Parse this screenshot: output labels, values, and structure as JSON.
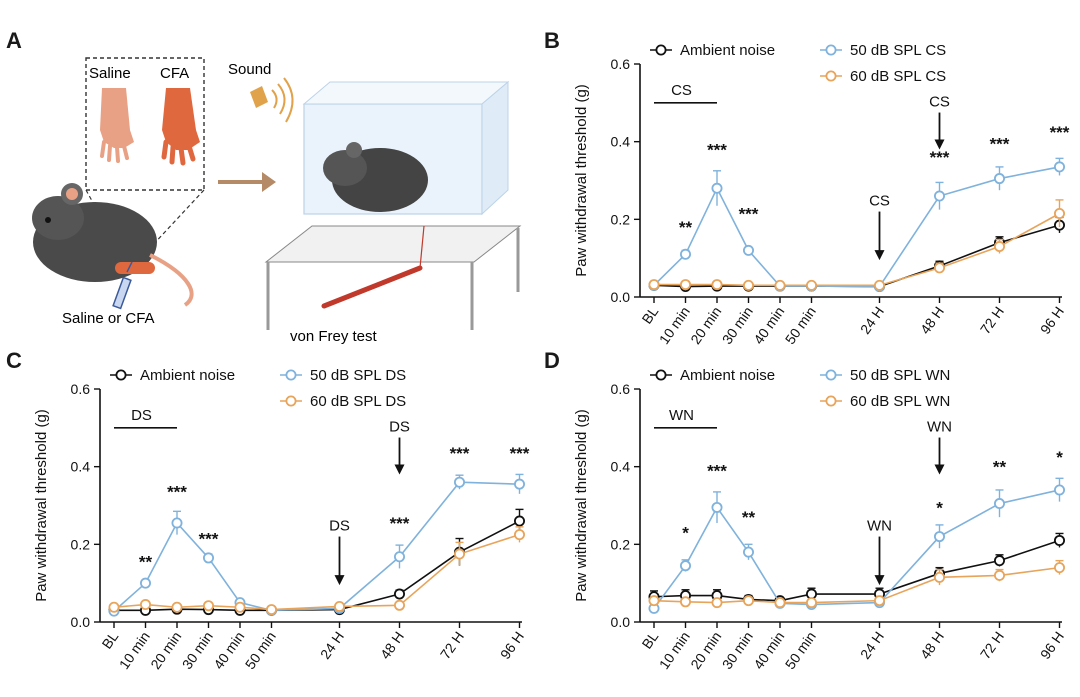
{
  "panel_a": {
    "letter": "A",
    "labels": {
      "saline": "Saline",
      "cfa": "CFA",
      "sound": "Sound",
      "injection": "Saline or CFA",
      "test": "von Frey test"
    }
  },
  "colors": {
    "ambient": "#111111",
    "cond50": "#7fb2dc",
    "cond60": "#e8a45a"
  },
  "chart_data": [
    {
      "panel": "B",
      "type": "line",
      "ylabel": "Paw withdrawal threshold (g)",
      "ylim": [
        0,
        0.6
      ],
      "yticks": [
        "0.0",
        "0.2",
        "0.4",
        "0.6"
      ],
      "categories": [
        "BL",
        "10 min",
        "20 min",
        "30 min",
        "40 min",
        "50 min",
        "24 H",
        "48 H",
        "72 H",
        "96 H"
      ],
      "series": [
        {
          "name": "Ambient noise",
          "color": "#111111",
          "values": [
            0.03,
            0.027,
            0.028,
            0.028,
            0.028,
            0.028,
            0.027,
            0.08,
            0.14,
            0.185
          ],
          "errors": [
            0.005,
            0.005,
            0.005,
            0.005,
            0.005,
            0.005,
            0.005,
            0.012,
            0.015,
            0.02
          ]
        },
        {
          "name": "50 dB SPL CS",
          "color": "#7fb2dc",
          "values": [
            0.03,
            0.11,
            0.28,
            0.12,
            0.028,
            0.028,
            0.027,
            0.26,
            0.305,
            0.335
          ],
          "errors": [
            0.005,
            0.01,
            0.045,
            0.008,
            0.005,
            0.005,
            0.005,
            0.035,
            0.03,
            0.022
          ]
        },
        {
          "name": "60 dB SPL CS",
          "color": "#e8a45a",
          "values": [
            0.032,
            0.032,
            0.032,
            0.03,
            0.03,
            0.03,
            0.03,
            0.075,
            0.13,
            0.215
          ],
          "errors": [
            0.005,
            0.005,
            0.005,
            0.005,
            0.005,
            0.005,
            0.005,
            0.012,
            0.018,
            0.035
          ]
        }
      ],
      "significance": [
        {
          "category": "10 min",
          "label": "**",
          "value": 0.165
        },
        {
          "category": "20 min",
          "label": "***",
          "value": 0.365
        },
        {
          "category": "30 min",
          "label": "***",
          "value": 0.2
        },
        {
          "category": "48 H",
          "label": "***",
          "value": 0.345
        },
        {
          "category": "72 H",
          "label": "***",
          "value": 0.38
        },
        {
          "category": "96 H",
          "label": "***",
          "value": 0.41
        }
      ],
      "stimulus": {
        "label": "CS",
        "bar_from": "BL",
        "bar_to": "20 min",
        "arrows": [
          "24 H",
          "48 H"
        ]
      }
    },
    {
      "panel": "C",
      "type": "line",
      "ylabel": "Paw withdrawal threshold (g)",
      "ylim": [
        0,
        0.6
      ],
      "yticks": [
        "0.0",
        "0.2",
        "0.4",
        "0.6"
      ],
      "categories": [
        "BL",
        "10 min",
        "20 min",
        "30 min",
        "40 min",
        "50 min",
        "24 H",
        "48 H",
        "72 H",
        "96 H"
      ],
      "series": [
        {
          "name": "Ambient noise",
          "color": "#111111",
          "values": [
            0.03,
            0.03,
            0.033,
            0.032,
            0.03,
            0.03,
            0.032,
            0.072,
            0.18,
            0.26
          ],
          "errors": [
            0.004,
            0.004,
            0.004,
            0.004,
            0.004,
            0.004,
            0.004,
            0.01,
            0.035,
            0.03
          ]
        },
        {
          "name": "50 dB SPL DS",
          "color": "#7fb2dc",
          "values": [
            0.028,
            0.1,
            0.255,
            0.165,
            0.05,
            0.03,
            0.035,
            0.168,
            0.36,
            0.355
          ],
          "errors": [
            0.004,
            0.008,
            0.03,
            0.01,
            0.006,
            0.004,
            0.004,
            0.03,
            0.018,
            0.025
          ]
        },
        {
          "name": "60 dB SPL DS",
          "color": "#e8a45a",
          "values": [
            0.038,
            0.045,
            0.038,
            0.042,
            0.038,
            0.032,
            0.04,
            0.043,
            0.175,
            0.225
          ],
          "errors": [
            0.004,
            0.004,
            0.004,
            0.004,
            0.004,
            0.004,
            0.004,
            0.006,
            0.03,
            0.02
          ]
        }
      ],
      "significance": [
        {
          "category": "10 min",
          "label": "**",
          "value": 0.14
        },
        {
          "category": "20 min",
          "label": "***",
          "value": 0.32
        },
        {
          "category": "30 min",
          "label": "***",
          "value": 0.2
        },
        {
          "category": "48 H",
          "label": "***",
          "value": 0.24
        },
        {
          "category": "72 H",
          "label": "***",
          "value": 0.42
        },
        {
          "category": "96 H",
          "label": "***",
          "value": 0.42
        }
      ],
      "stimulus": {
        "label": "DS",
        "bar_from": "BL",
        "bar_to": "20 min",
        "arrows": [
          "24 H",
          "48 H"
        ]
      }
    },
    {
      "panel": "D",
      "type": "line",
      "ylabel": "Paw withdrawal threshold (g)",
      "ylim": [
        0,
        0.6
      ],
      "yticks": [
        "0.0",
        "0.2",
        "0.4",
        "0.6"
      ],
      "categories": [
        "BL",
        "10 min",
        "20 min",
        "30 min",
        "40 min",
        "50 min",
        "24 H",
        "48 H",
        "72 H",
        "96 H"
      ],
      "series": [
        {
          "name": "Ambient noise",
          "color": "#111111",
          "values": [
            0.065,
            0.068,
            0.068,
            0.058,
            0.055,
            0.072,
            0.072,
            0.125,
            0.158,
            0.21
          ],
          "errors": [
            0.015,
            0.015,
            0.015,
            0.01,
            0.008,
            0.015,
            0.015,
            0.015,
            0.015,
            0.018
          ]
        },
        {
          "name": "50 dB SPL WN",
          "color": "#7fb2dc",
          "values": [
            0.035,
            0.145,
            0.295,
            0.18,
            0.048,
            0.045,
            0.05,
            0.22,
            0.305,
            0.34
          ],
          "errors": [
            0.005,
            0.015,
            0.04,
            0.02,
            0.006,
            0.005,
            0.005,
            0.03,
            0.035,
            0.03
          ]
        },
        {
          "name": "60 dB SPL WN",
          "color": "#e8a45a",
          "values": [
            0.055,
            0.052,
            0.05,
            0.055,
            0.05,
            0.05,
            0.055,
            0.115,
            0.12,
            0.14
          ],
          "errors": [
            0.008,
            0.008,
            0.008,
            0.008,
            0.008,
            0.008,
            0.008,
            0.02,
            0.015,
            0.018
          ]
        }
      ],
      "significance": [
        {
          "category": "10 min",
          "label": "*",
          "value": 0.215
        },
        {
          "category": "20 min",
          "label": "***",
          "value": 0.375
        },
        {
          "category": "30 min",
          "label": "**",
          "value": 0.255
        },
        {
          "category": "48 H",
          "label": "*",
          "value": 0.28
        },
        {
          "category": "72 H",
          "label": "**",
          "value": 0.385
        },
        {
          "category": "96 H",
          "label": "*",
          "value": 0.41
        }
      ],
      "stimulus": {
        "label": "WN",
        "bar_from": "BL",
        "bar_to": "20 min",
        "arrows": [
          "24 H",
          "48 H"
        ]
      }
    }
  ]
}
